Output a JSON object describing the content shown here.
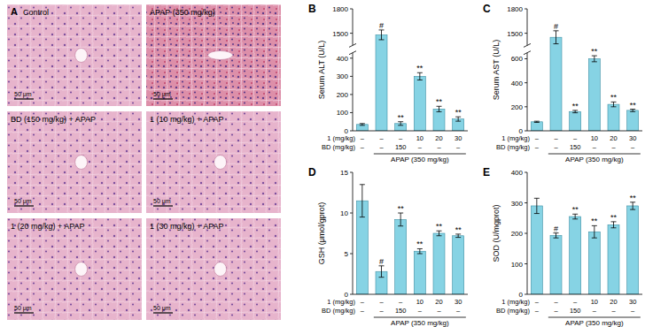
{
  "figure": {
    "panel_a": {
      "letter": "A",
      "images": [
        {
          "label": "Control",
          "scale_bar": "50 μm"
        },
        {
          "label": "APAP (350 mg/kg)",
          "scale_bar": "50 μm"
        },
        {
          "label": "BD (150 mg/kg) + APAP",
          "scale_bar": "50 μm"
        },
        {
          "label": "1 (10 mg/kg) + APAP",
          "scale_bar": "50 μm"
        },
        {
          "label": "1 (20 mg/kg) + APAP",
          "scale_bar": "50 μm"
        },
        {
          "label": "1 (30 mg/kg) + APAP",
          "scale_bar": "50 μm"
        }
      ]
    }
  },
  "chart_data": [
    {
      "type": "bar",
      "panel": "B",
      "y_label": "Serum ALT (U/L)",
      "categories": [
        null,
        null,
        null,
        null,
        null,
        null
      ],
      "values": [
        35,
        1480,
        40,
        300,
        120,
        65
      ],
      "errors": [
        5,
        60,
        10,
        20,
        15,
        12
      ],
      "annotations": [
        null,
        "#",
        "**",
        "**",
        "**",
        "**"
      ],
      "x_rows": [
        {
          "label": "1 (mg/kg)",
          "values": [
            "–",
            "–",
            "–",
            "10",
            "20",
            "30"
          ]
        },
        {
          "label": "BD (mg/kg)",
          "values": [
            "–",
            "–",
            "150",
            "–",
            "–",
            "–"
          ]
        }
      ],
      "group": {
        "label": "APAP (350 mg/kg)",
        "from": 1,
        "to": 5
      },
      "color": "#86d3e4",
      "ylim": [
        0,
        1800
      ],
      "axis_break": [
        430,
        1350
      ],
      "yticks": [
        0,
        100,
        200,
        300,
        400,
        1500,
        1800
      ],
      "grid": false
    },
    {
      "type": "bar",
      "panel": "C",
      "y_label": "Serum AST (U/L)",
      "categories": [
        null,
        null,
        null,
        null,
        null,
        null
      ],
      "values": [
        75,
        1450,
        160,
        600,
        220,
        170
      ],
      "errors": [
        5,
        80,
        10,
        25,
        20,
        10
      ],
      "annotations": [
        null,
        "#",
        "**",
        "**",
        "**",
        "**"
      ],
      "x_rows": [
        {
          "label": "1 (mg/kg)",
          "values": [
            "–",
            "–",
            "–",
            "10",
            "20",
            "30"
          ]
        },
        {
          "label": "BD (mg/kg)",
          "values": [
            "–",
            "–",
            "150",
            "–",
            "–",
            "–"
          ]
        }
      ],
      "group": {
        "label": "APAP (350 mg/kg)",
        "from": 1,
        "to": 5
      },
      "color": "#86d3e4",
      "ylim": [
        0,
        1800
      ],
      "axis_break": [
        650,
        1350
      ],
      "yticks": [
        0,
        200,
        400,
        600,
        1500,
        1800
      ],
      "grid": false
    },
    {
      "type": "bar",
      "panel": "D",
      "y_label": "GSH (μmol/gprot)",
      "categories": [
        null,
        null,
        null,
        null,
        null,
        null
      ],
      "values": [
        11.5,
        2.8,
        9.2,
        5.3,
        7.5,
        7.2
      ],
      "errors": [
        2.0,
        0.7,
        0.8,
        0.3,
        0.3,
        0.2
      ],
      "annotations": [
        null,
        "#",
        "**",
        "**",
        "**",
        "**"
      ],
      "x_rows": [
        {
          "label": "1 (mg/kg)",
          "values": [
            "–",
            "–",
            "–",
            "10",
            "20",
            "30"
          ]
        },
        {
          "label": "BD (mg/kg)",
          "values": [
            "–",
            "–",
            "150",
            "–",
            "–",
            "–"
          ]
        }
      ],
      "group": {
        "label": "APAP (350 mg/kg)",
        "from": 1,
        "to": 5
      },
      "color": "#86d3e4",
      "ylim": [
        0,
        15
      ],
      "yticks": [
        0,
        5,
        10,
        15
      ],
      "grid": false
    },
    {
      "type": "bar",
      "panel": "E",
      "y_label": "SOD (U/mgprot)",
      "categories": [
        null,
        null,
        null,
        null,
        null,
        null
      ],
      "values": [
        290,
        193,
        255,
        205,
        228,
        290
      ],
      "errors": [
        25,
        8,
        8,
        20,
        10,
        12
      ],
      "annotations": [
        null,
        "#",
        "**",
        "**",
        "**",
        "**"
      ],
      "x_rows": [
        {
          "label": "1 (mg/kg)",
          "values": [
            "–",
            "–",
            "–",
            "10",
            "20",
            "30"
          ]
        },
        {
          "label": "BD (mg/kg)",
          "values": [
            "–",
            "–",
            "150",
            "–",
            "–",
            "–"
          ]
        }
      ],
      "group": {
        "label": "APAP (350 mg/kg)",
        "from": 1,
        "to": 5
      },
      "color": "#86d3e4",
      "ylim": [
        0,
        400
      ],
      "yticks": [
        0,
        100,
        200,
        300,
        400
      ],
      "grid": false
    }
  ]
}
